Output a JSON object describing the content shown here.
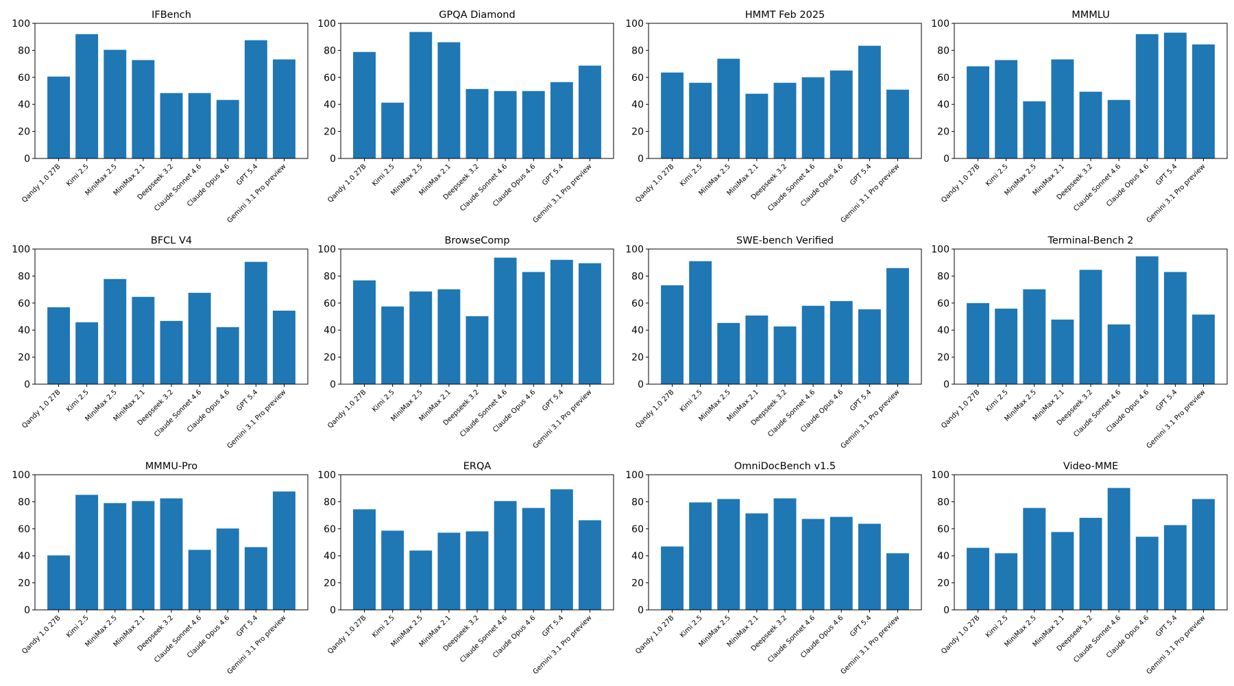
{
  "colors": {
    "bar": "#1f77b4",
    "axis": "#000000",
    "background": "#ffffff"
  },
  "chart_data": [
    {
      "type": "bar",
      "title": "IFBench",
      "categories": [
        "Qandy 1.0 27B",
        "Kimi 2.5",
        "MiniMax 2.5",
        "MiniMax 2.1",
        "Deepseek 3.2",
        "Claude Sonnet 4.6",
        "Claude Opus 4.6",
        "GPT 5.4",
        "Gemini 3.1 Pro preview"
      ],
      "values": [
        60.6,
        92.0,
        80.4,
        72.8,
        48.4,
        48.4,
        43.3,
        87.5,
        73.3
      ],
      "ylim": [
        0,
        100
      ],
      "yticks": [
        0,
        20,
        40,
        60,
        80,
        100
      ],
      "grid": false
    },
    {
      "type": "bar",
      "title": "GPQA Diamond",
      "categories": [
        "Qandy 1.0 27B",
        "Kimi 2.5",
        "MiniMax 2.5",
        "MiniMax 2.1",
        "Deepseek 3.2",
        "Claude Sonnet 4.6",
        "Claude Opus 4.6",
        "GPT 5.4",
        "Gemini 3.1 Pro preview"
      ],
      "values": [
        78.8,
        41.3,
        93.6,
        86.0,
        51.4,
        49.9,
        49.9,
        56.5,
        68.7
      ],
      "ylim": [
        0,
        100
      ],
      "yticks": [
        0,
        20,
        40,
        60,
        80,
        100
      ],
      "grid": false
    },
    {
      "type": "bar",
      "title": "HMMT Feb 2025",
      "categories": [
        "Qandy 1.0 27B",
        "Kimi 2.5",
        "MiniMax 2.5",
        "MiniMax 2.1",
        "Deepseek 3.2",
        "Claude Sonnet 4.6",
        "Claude Opus 4.6",
        "GPT 5.4",
        "Gemini 3.1 Pro preview"
      ],
      "values": [
        63.6,
        56.0,
        73.8,
        47.9,
        56.0,
        60.1,
        65.1,
        83.4,
        50.9
      ],
      "ylim": [
        0,
        100
      ],
      "yticks": [
        0,
        20,
        40,
        60,
        80,
        100
      ],
      "grid": false
    },
    {
      "type": "bar",
      "title": "MMMLU",
      "categories": [
        "Qandy 1.0 27B",
        "Kimi 2.5",
        "MiniMax 2.5",
        "MiniMax 2.1",
        "Deepseek 3.2",
        "Claude Sonnet 4.6",
        "Claude Opus 4.6",
        "GPT 5.4",
        "Gemini 3.1 Pro preview"
      ],
      "values": [
        68.2,
        72.8,
        42.3,
        73.3,
        49.4,
        43.3,
        92.0,
        93.1,
        84.4
      ],
      "ylim": [
        0,
        100
      ],
      "yticks": [
        0,
        20,
        40,
        60,
        80,
        100
      ],
      "grid": false
    },
    {
      "type": "bar",
      "title": "BFCL V4",
      "categories": [
        "Qandy 1.0 27B",
        "Kimi 2.5",
        "MiniMax 2.5",
        "MiniMax 2.1",
        "Deepseek 3.2",
        "Claude Sonnet 4.6",
        "Claude Opus 4.6",
        "GPT 5.4",
        "Gemini 3.1 Pro preview"
      ],
      "values": [
        56.9,
        45.8,
        77.8,
        64.6,
        46.8,
        67.6,
        42.2,
        90.5,
        54.4
      ],
      "ylim": [
        0,
        100
      ],
      "yticks": [
        0,
        20,
        40,
        60,
        80,
        100
      ],
      "grid": false
    },
    {
      "type": "bar",
      "title": "BrowseComp",
      "categories": [
        "Qandy 1.0 27B",
        "Kimi 2.5",
        "MiniMax 2.5",
        "MiniMax 2.1",
        "Deepseek 3.2",
        "Claude Sonnet 4.6",
        "Claude Opus 4.6",
        "GPT 5.4",
        "Gemini 3.1 Pro preview"
      ],
      "values": [
        76.8,
        57.5,
        68.6,
        70.2,
        50.3,
        93.6,
        83.0,
        92.0,
        89.5
      ],
      "ylim": [
        0,
        100
      ],
      "yticks": [
        0,
        20,
        40,
        60,
        80,
        100
      ],
      "grid": false
    },
    {
      "type": "bar",
      "title": "SWE-bench Verified",
      "categories": [
        "Qandy 1.0 27B",
        "Kimi 2.5",
        "MiniMax 2.5",
        "MiniMax 2.1",
        "Deepseek 3.2",
        "Claude Sonnet 4.6",
        "Claude Opus 4.6",
        "GPT 5.4",
        "Gemini 3.1 Pro preview"
      ],
      "values": [
        73.2,
        91.0,
        45.3,
        50.8,
        42.7,
        58.0,
        61.5,
        55.4,
        85.9
      ],
      "ylim": [
        0,
        100
      ],
      "yticks": [
        0,
        20,
        40,
        60,
        80,
        100
      ],
      "grid": false
    },
    {
      "type": "bar",
      "title": "Terminal-Bench 2",
      "categories": [
        "Qandy 1.0 27B",
        "Kimi 2.5",
        "MiniMax 2.5",
        "MiniMax 2.1",
        "Deepseek 3.2",
        "Claude Sonnet 4.6",
        "Claude Opus 4.6",
        "GPT 5.4",
        "Gemini 3.1 Pro preview"
      ],
      "values": [
        60.0,
        55.9,
        70.2,
        47.8,
        84.6,
        44.2,
        94.6,
        83.0,
        51.5
      ],
      "ylim": [
        0,
        100
      ],
      "yticks": [
        0,
        20,
        40,
        60,
        80,
        100
      ],
      "grid": false
    },
    {
      "type": "bar",
      "title": "MMMU-Pro",
      "categories": [
        "Qandy 1.0 27B",
        "Kimi 2.5",
        "MiniMax 2.5",
        "MiniMax 2.1",
        "Deepseek 3.2",
        "Claude Sonnet 4.6",
        "Claude Opus 4.6",
        "GPT 5.4",
        "Gemini 3.1 Pro preview"
      ],
      "values": [
        40.3,
        85.1,
        79.0,
        80.5,
        82.5,
        44.4,
        60.2,
        46.4,
        87.6
      ],
      "ylim": [
        0,
        100
      ],
      "yticks": [
        0,
        20,
        40,
        60,
        80,
        100
      ],
      "grid": false
    },
    {
      "type": "bar",
      "title": "ERQA",
      "categories": [
        "Qandy 1.0 27B",
        "Kimi 2.5",
        "MiniMax 2.5",
        "MiniMax 2.1",
        "Deepseek 3.2",
        "Claude Sonnet 4.6",
        "Claude Opus 4.6",
        "GPT 5.4",
        "Gemini 3.1 Pro preview"
      ],
      "values": [
        74.4,
        58.6,
        43.9,
        57.1,
        58.1,
        80.5,
        75.4,
        89.2,
        66.3
      ],
      "ylim": [
        0,
        100
      ],
      "yticks": [
        0,
        20,
        40,
        60,
        80,
        100
      ],
      "grid": false
    },
    {
      "type": "bar",
      "title": "OmniDocBench v1.5",
      "categories": [
        "Qandy 1.0 27B",
        "Kimi 2.5",
        "MiniMax 2.5",
        "MiniMax 2.1",
        "Deepseek 3.2",
        "Claude Sonnet 4.6",
        "Claude Opus 4.6",
        "GPT 5.4",
        "Gemini 3.1 Pro preview"
      ],
      "values": [
        46.9,
        79.5,
        82.0,
        71.4,
        82.5,
        67.3,
        68.8,
        63.7,
        41.9
      ],
      "ylim": [
        0,
        100
      ],
      "yticks": [
        0,
        20,
        40,
        60,
        80,
        100
      ],
      "grid": false
    },
    {
      "type": "bar",
      "title": "Video-MME",
      "categories": [
        "Qandy 1.0 27B",
        "Kimi 2.5",
        "MiniMax 2.5",
        "MiniMax 2.1",
        "Deepseek 3.2",
        "Claude Sonnet 4.6",
        "Claude Opus 4.6",
        "GPT 5.4",
        "Gemini 3.1 Pro preview"
      ],
      "values": [
        45.9,
        41.9,
        75.4,
        57.6,
        68.1,
        90.2,
        54.1,
        62.7,
        82.0
      ],
      "ylim": [
        0,
        100
      ],
      "yticks": [
        0,
        20,
        40,
        60,
        80,
        100
      ],
      "grid": false
    }
  ]
}
